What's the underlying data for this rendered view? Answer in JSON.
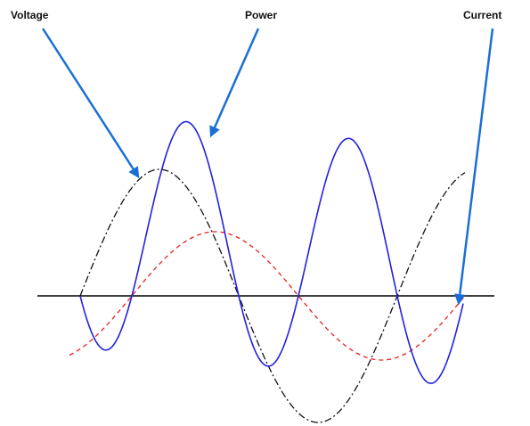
{
  "labels": {
    "voltage": "Voltage",
    "power": "Power",
    "current": "Current"
  }
}
